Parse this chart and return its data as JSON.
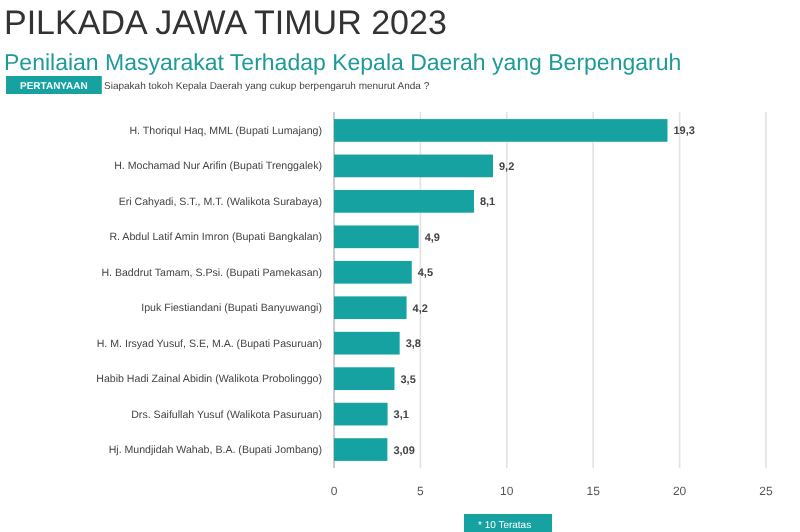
{
  "chart_data": {
    "type": "bar",
    "orientation": "horizontal",
    "title": "PILKADA JAWA TIMUR 2023",
    "subtitle": "Penilaian Masyarakat Terhadap Kepala Daerah yang Berpengaruh",
    "annotations": [
      "PERTANYAAN",
      "Siapakah tokoh Kepala Daerah yang cukup berpengaruh menurut Anda ?",
      "* 10 Teratas"
    ],
    "categories": [
      "H. Thoriqul Haq, MML (Bupati Lumajang)",
      "H. Mochamad Nur Arifin (Bupati Trenggalek)",
      "Eri Cahyadi, S.T., M.T. (Walikota Surabaya)",
      "R. Abdul Latif Amin Imron (Bupati Bangkalan)",
      "H. Baddrut Tamam, S.Psi. (Bupati Pamekasan)",
      "Ipuk Fiestiandani (Bupati Banyuwangi)",
      "H. M. Irsyad Yusuf, S.E, M.A. (Bupati Pasuruan)",
      "Habib Hadi Zainal Abidin (Walikota Probolinggo)",
      "Drs. Saifullah Yusuf (Walikota Pasuruan)",
      "Hj. Mundjidah Wahab, B.A. (Bupati Jombang)"
    ],
    "values": [
      19.3,
      9.2,
      8.1,
      4.9,
      4.5,
      4.2,
      3.8,
      3.5,
      3.1,
      3.09
    ],
    "value_labels": [
      "19,3",
      "9,2",
      "8,1",
      "4,9",
      "4,5",
      "4,2",
      "3,8",
      "3,5",
      "3,1",
      "3,09"
    ],
    "color": "#17a2a2",
    "xlim": [
      0,
      25
    ],
    "xticks": [
      0,
      5,
      10,
      15,
      20,
      25
    ],
    "grid": "x"
  }
}
